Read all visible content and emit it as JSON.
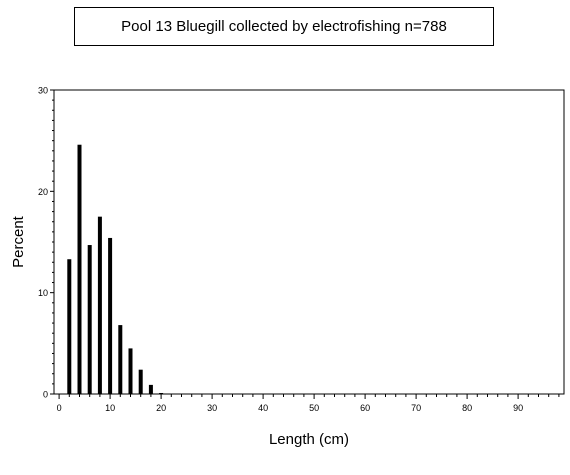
{
  "chart_data": {
    "type": "bar",
    "title": "Pool 13 Bluegill collected by electrofishing n=788",
    "xlabel": "Length (cm)",
    "ylabel": "Percent",
    "xlim": [
      -1,
      99
    ],
    "ylim": [
      0,
      30
    ],
    "x_ticks": [
      0,
      10,
      20,
      30,
      40,
      50,
      60,
      70,
      80,
      90
    ],
    "y_ticks": [
      0,
      10,
      20,
      30
    ],
    "x": [
      2,
      4,
      6,
      8,
      10,
      12,
      14,
      16,
      18,
      20
    ],
    "values": [
      13.3,
      24.6,
      14.7,
      17.5,
      15.4,
      6.8,
      4.5,
      2.4,
      0.9,
      0.1
    ],
    "grid": false,
    "bar_color": "#000000"
  }
}
